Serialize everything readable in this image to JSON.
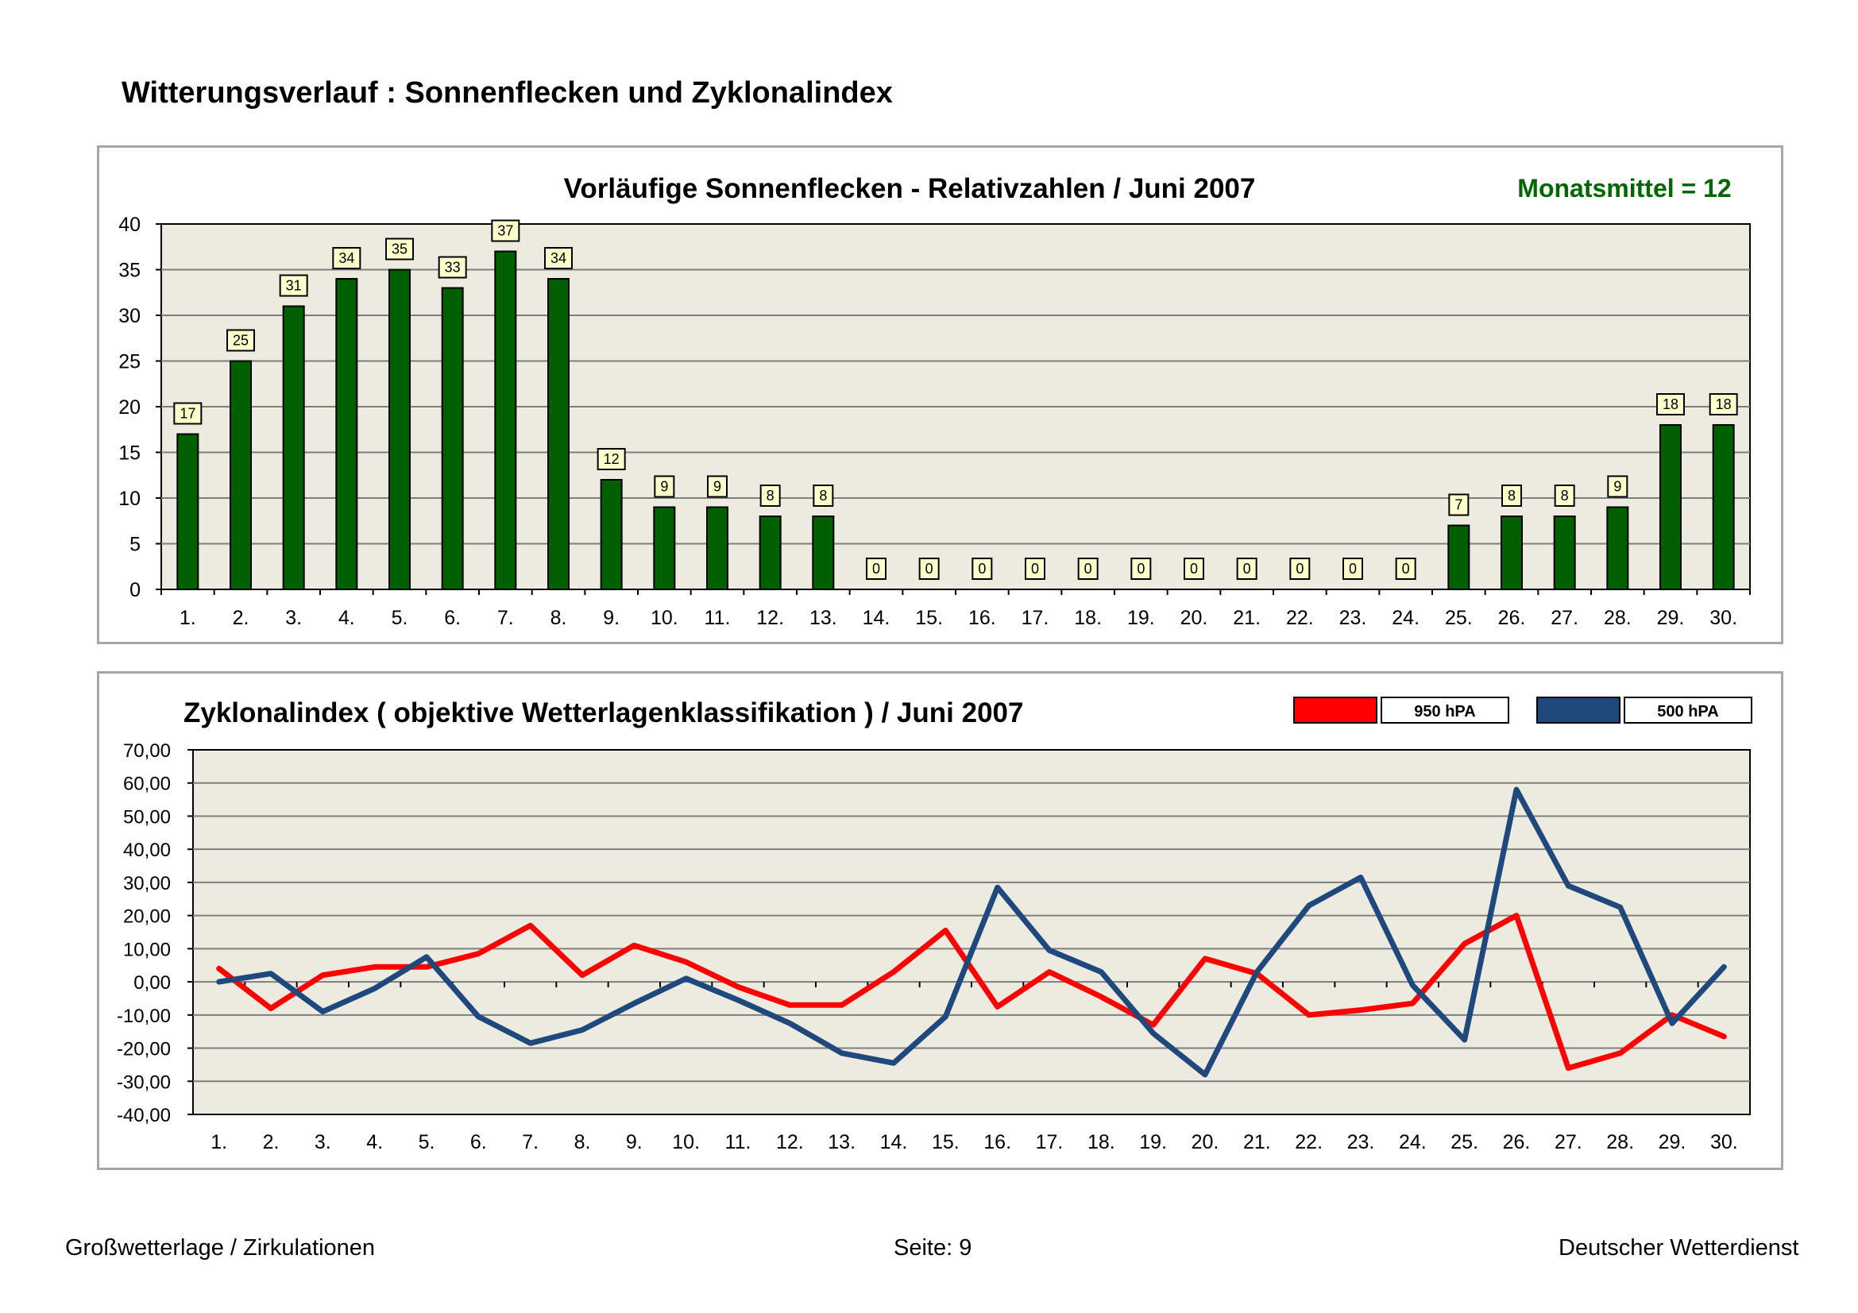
{
  "page": {
    "title": "Witterungsverlauf : Sonnenflecken und Zyklonalindex"
  },
  "footer": {
    "left": "Großwetterlage / Zirkulationen",
    "center": "Seite: 9",
    "right": "Deutscher Wetterdienst"
  },
  "colors": {
    "plot_bg": "#edeae0",
    "bar_fill": "#006000",
    "label_box": "#ffffcc",
    "series_950": "#ff0000",
    "series_500": "#1f497d",
    "mean_text": "#006600",
    "gridline": "#7f7f7f"
  },
  "chart_data": [
    {
      "type": "bar",
      "title": "Vorläufige Sonnenflecken - Relativzahlen   /   Juni 2007",
      "annotation": "Monatsmittel = 12",
      "xlabel": "",
      "ylabel": "",
      "ylim": [
        0,
        40
      ],
      "yticks": [
        0,
        5,
        10,
        15,
        20,
        25,
        30,
        35,
        40
      ],
      "ytick_labels": [
        "0",
        "5",
        "10",
        "15",
        "20",
        "25",
        "30",
        "35",
        "40"
      ],
      "categories": [
        "1.",
        "2.",
        "3.",
        "4.",
        "5.",
        "6.",
        "7.",
        "8.",
        "9.",
        "10.",
        "11.",
        "12.",
        "13.",
        "14.",
        "15.",
        "16.",
        "17.",
        "18.",
        "19.",
        "20.",
        "21.",
        "22.",
        "23.",
        "24.",
        "25.",
        "26.",
        "27.",
        "28.",
        "29.",
        "30."
      ],
      "values": [
        17,
        25,
        31,
        34,
        35,
        33,
        37,
        34,
        12,
        9,
        9,
        8,
        8,
        0,
        0,
        0,
        0,
        0,
        0,
        0,
        0,
        0,
        0,
        0,
        7,
        8,
        8,
        9,
        18,
        18
      ],
      "grid": true
    },
    {
      "type": "line",
      "title": "Zyklonalindex  ( objektive Wetterlagenklassifikation )  /  Juni 2007",
      "xlabel": "",
      "ylabel": "",
      "ylim": [
        -40,
        70
      ],
      "yticks": [
        -40,
        -30,
        -20,
        -10,
        0,
        10,
        20,
        30,
        40,
        50,
        60,
        70
      ],
      "ytick_labels": [
        "-40,00",
        "-30,00",
        "-20,00",
        "-10,00",
        "0,00",
        "10,00",
        "20,00",
        "30,00",
        "40,00",
        "50,00",
        "60,00",
        "70,00"
      ],
      "legend_position": "top-right",
      "categories": [
        "1.",
        "2.",
        "3.",
        "4.",
        "5.",
        "6.",
        "7.",
        "8.",
        "9.",
        "10.",
        "11.",
        "12.",
        "13.",
        "14.",
        "15.",
        "16.",
        "17.",
        "18.",
        "19.",
        "20.",
        "21.",
        "22.",
        "23.",
        "24.",
        "25.",
        "26.",
        "27.",
        "28.",
        "29.",
        "30."
      ],
      "series": [
        {
          "name": "950 hPA",
          "color": "#ff0000",
          "values": [
            4,
            -8,
            2,
            4.5,
            4.5,
            8.5,
            17,
            2,
            11,
            6,
            -1.5,
            -7,
            -7,
            3,
            15.5,
            -7.5,
            3,
            -4.5,
            -13,
            7,
            2.5,
            -10,
            -8.5,
            -6.5,
            11.5,
            20,
            -26,
            -21.5,
            -10,
            -16.5
          ]
        },
        {
          "name": "500 hPA",
          "color": "#1f497d",
          "values": [
            0,
            2.5,
            -9,
            -2,
            7.5,
            -10.5,
            -18.5,
            -14.5,
            -6.5,
            1,
            -5.5,
            -12.5,
            -21.5,
            -24.5,
            -10.5,
            28.5,
            9.5,
            3,
            -15.5,
            -28,
            3,
            23,
            31.5,
            -1,
            -17.5,
            58,
            29,
            22.5,
            -12.5,
            4.5
          ]
        }
      ],
      "grid": true
    }
  ]
}
